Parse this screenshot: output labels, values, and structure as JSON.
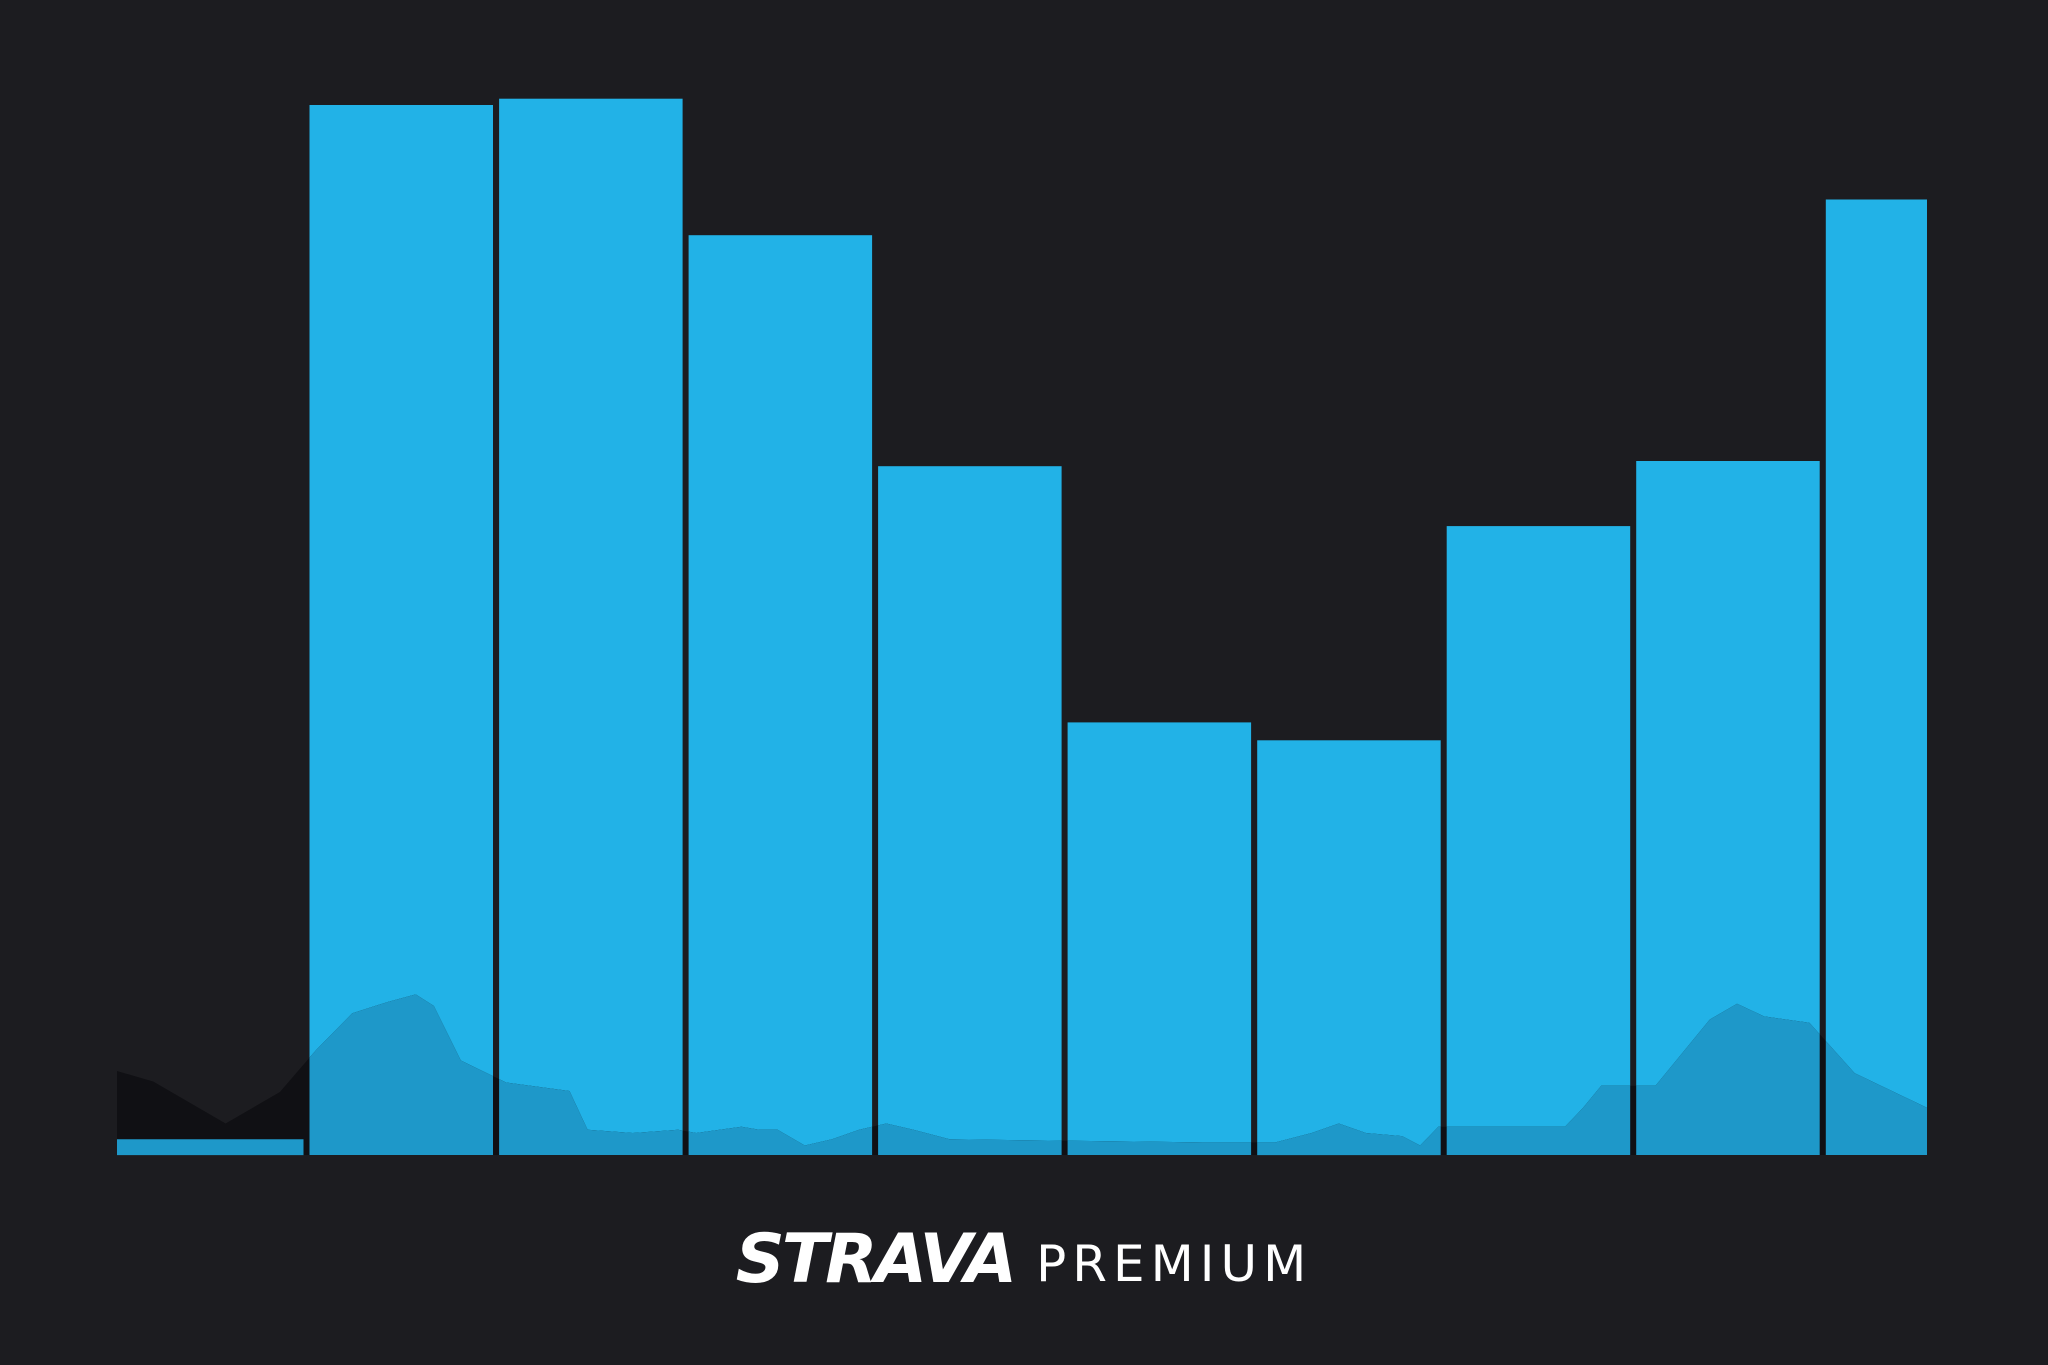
{
  "page": {
    "background_color": "#1c1c20"
  },
  "chart_data": {
    "type": "bar",
    "categories": [
      "",
      "",
      "",
      "",
      "",
      "",
      "",
      "",
      "",
      ""
    ],
    "values": [
      1.5,
      100,
      100.6,
      87.6,
      65.6,
      41.2,
      39.5,
      59.9,
      66.1,
      91.0
    ],
    "ylim": [
      0,
      100
    ],
    "bar_color": "#22b2e7",
    "elevation_color_over_bar": "#1e98c9",
    "elevation_color_background": "#101014",
    "elevation_profile": [
      [
        0.0,
        8
      ],
      [
        0.02,
        7
      ],
      [
        0.06,
        3
      ],
      [
        0.09,
        6
      ],
      [
        0.11,
        10
      ],
      [
        0.13,
        13.5
      ],
      [
        0.15,
        14.6
      ],
      [
        0.165,
        15.3
      ],
      [
        0.175,
        14.2
      ],
      [
        0.19,
        9
      ],
      [
        0.215,
        6.9
      ],
      [
        0.25,
        6.1
      ],
      [
        0.26,
        2.4
      ],
      [
        0.285,
        2.1
      ],
      [
        0.31,
        2.4
      ],
      [
        0.32,
        2.1
      ],
      [
        0.345,
        2.7
      ],
      [
        0.355,
        2.4
      ],
      [
        0.365,
        2.4
      ],
      [
        0.38,
        0.9
      ],
      [
        0.395,
        1.5
      ],
      [
        0.41,
        2.4
      ],
      [
        0.425,
        3.0
      ],
      [
        0.44,
        2.4
      ],
      [
        0.46,
        1.5
      ],
      [
        0.6,
        1.2
      ],
      [
        0.64,
        1.2
      ],
      [
        0.66,
        2.1
      ],
      [
        0.675,
        3.0
      ],
      [
        0.69,
        2.1
      ],
      [
        0.71,
        1.8
      ],
      [
        0.72,
        0.9
      ],
      [
        0.73,
        2.7
      ],
      [
        0.76,
        2.7
      ],
      [
        0.8,
        2.7
      ],
      [
        0.81,
        4.5
      ],
      [
        0.82,
        6.6
      ],
      [
        0.85,
        6.6
      ],
      [
        0.88,
        12.9
      ],
      [
        0.895,
        14.4
      ],
      [
        0.91,
        13.2
      ],
      [
        0.935,
        12.6
      ],
      [
        0.96,
        7.8
      ],
      [
        1.0,
        4.5
      ]
    ]
  },
  "brand": {
    "logo_text": "STRAVA",
    "tier_text": "PREMIUM"
  }
}
